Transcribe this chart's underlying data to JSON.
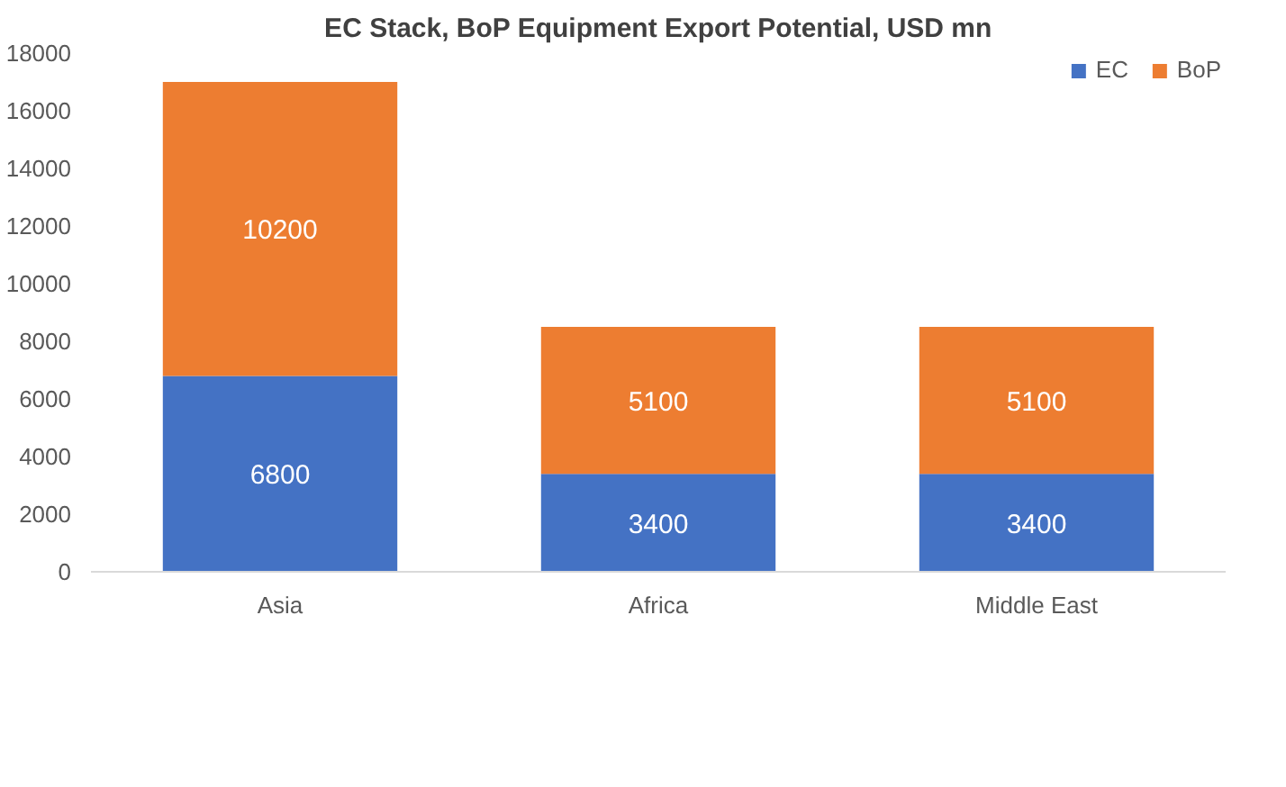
{
  "chart_data": {
    "type": "bar",
    "title": "EC Stack, BoP Equipment Export Potential, USD mn",
    "categories": [
      "Asia",
      "Africa",
      "Middle East"
    ],
    "stacked": true,
    "data_labels": true,
    "legend": "top right",
    "grid": false,
    "series": [
      {
        "name": "EC",
        "color": "#4472c4",
        "values": [
          6800,
          3400,
          3400
        ]
      },
      {
        "name": "BoP",
        "color": "#ed7d31",
        "values": [
          10200,
          5100,
          5100
        ]
      }
    ],
    "ylim": [
      0,
      18000
    ],
    "yticks": [
      0,
      2000,
      4000,
      6000,
      8000,
      10000,
      12000,
      14000,
      16000,
      18000
    ]
  }
}
